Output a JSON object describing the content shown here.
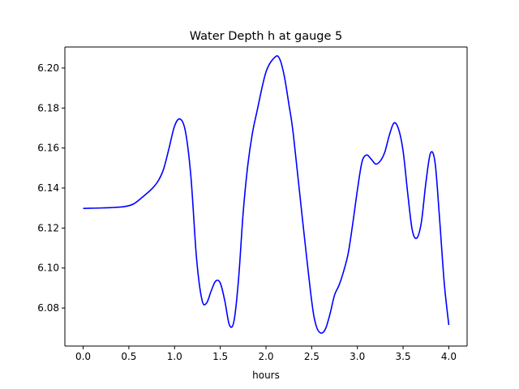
{
  "chart_data": {
    "type": "line",
    "title": "Water Depth h at gauge 5",
    "xlabel": "hours",
    "ylabel": "",
    "xlim": [
      -0.2,
      4.2
    ],
    "ylim": [
      6.061,
      6.2105
    ],
    "xticks": [
      0.0,
      0.5,
      1.0,
      1.5,
      2.0,
      2.5,
      3.0,
      3.5,
      4.0
    ],
    "xtick_labels": [
      "0.0",
      "0.5",
      "1.0",
      "1.5",
      "2.0",
      "2.5",
      "3.0",
      "3.5",
      "4.0"
    ],
    "yticks": [
      6.08,
      6.1,
      6.12,
      6.14,
      6.16,
      6.18,
      6.2
    ],
    "ytick_labels": [
      "6.08",
      "6.10",
      "6.12",
      "6.14",
      "6.16",
      "6.18",
      "6.20"
    ],
    "grid": false,
    "series": [
      {
        "color": "#0000ff",
        "x": [
          0.0,
          0.3,
          0.45,
          0.55,
          0.65,
          0.75,
          0.82,
          0.88,
          0.94,
          1.0,
          1.06,
          1.12,
          1.18,
          1.24,
          1.3,
          1.35,
          1.4,
          1.45,
          1.5,
          1.55,
          1.6,
          1.65,
          1.7,
          1.75,
          1.8,
          1.85,
          1.9,
          2.0,
          2.1,
          2.15,
          2.2,
          2.25,
          2.3,
          2.4,
          2.5,
          2.55,
          2.6,
          2.65,
          2.7,
          2.75,
          2.8,
          2.85,
          2.9,
          2.95,
          3.0,
          3.05,
          3.1,
          3.15,
          3.2,
          3.25,
          3.3,
          3.35,
          3.4,
          3.45,
          3.5,
          3.55,
          3.6,
          3.65,
          3.7,
          3.75,
          3.8,
          3.85,
          3.9,
          3.95,
          4.0
        ],
        "y": [
          6.1298,
          6.1302,
          6.1307,
          6.132,
          6.1355,
          6.1395,
          6.1435,
          6.1495,
          6.16,
          6.171,
          6.1745,
          6.168,
          6.145,
          6.105,
          6.084,
          6.0825,
          6.0885,
          6.0935,
          6.0925,
          6.0835,
          6.0715,
          6.0735,
          6.0945,
          6.1275,
          6.151,
          6.167,
          6.178,
          6.198,
          6.2055,
          6.2045,
          6.196,
          6.182,
          6.1665,
          6.124,
          6.0835,
          6.071,
          6.0675,
          6.0695,
          6.077,
          6.0865,
          6.0915,
          6.0985,
          6.1075,
          6.1225,
          6.139,
          6.153,
          6.1565,
          6.1545,
          6.152,
          6.1535,
          6.158,
          6.1665,
          6.1725,
          6.1695,
          6.1585,
          6.1375,
          6.119,
          6.115,
          6.123,
          6.143,
          6.1575,
          6.1525,
          6.124,
          6.0925,
          6.0715
        ]
      }
    ]
  }
}
